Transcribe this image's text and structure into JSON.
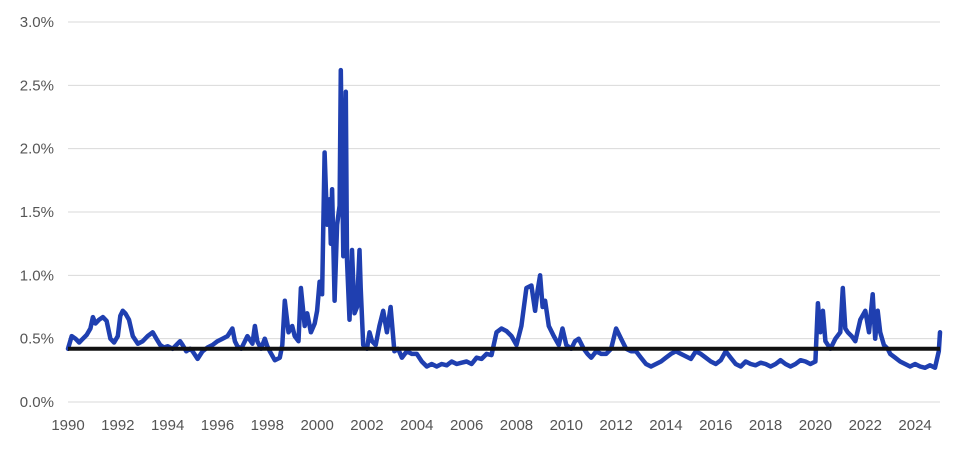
{
  "chart_data": {
    "type": "line",
    "title": "",
    "xlabel": "",
    "ylabel": "",
    "xlim": [
      1990,
      2025
    ],
    "ylim": [
      0,
      3.0
    ],
    "grid": true,
    "y_ticks": [
      {
        "value": 0.0,
        "label": "0.0%"
      },
      {
        "value": 0.5,
        "label": "0.5%"
      },
      {
        "value": 1.0,
        "label": "1.0%"
      },
      {
        "value": 1.5,
        "label": "1.5%"
      },
      {
        "value": 2.0,
        "label": "2.0%"
      },
      {
        "value": 2.5,
        "label": "2.5%"
      },
      {
        "value": 3.0,
        "label": "3.0%"
      }
    ],
    "x_ticks": [
      {
        "value": 1990,
        "label": "1990"
      },
      {
        "value": 1992,
        "label": "1992"
      },
      {
        "value": 1994,
        "label": "1994"
      },
      {
        "value": 1996,
        "label": "1996"
      },
      {
        "value": 1998,
        "label": "1998"
      },
      {
        "value": 2000,
        "label": "2000"
      },
      {
        "value": 2002,
        "label": "2002"
      },
      {
        "value": 2004,
        "label": "2004"
      },
      {
        "value": 2006,
        "label": "2006"
      },
      {
        "value": 2008,
        "label": "2008"
      },
      {
        "value": 2010,
        "label": "2010"
      },
      {
        "value": 2012,
        "label": "2012"
      },
      {
        "value": 2014,
        "label": "2014"
      },
      {
        "value": 2016,
        "label": "2016"
      },
      {
        "value": 2018,
        "label": "2018"
      },
      {
        "value": 2020,
        "label": "2020"
      },
      {
        "value": 2022,
        "label": "2022"
      },
      {
        "value": 2024,
        "label": "2024"
      }
    ],
    "reference_line": {
      "value": 0.42,
      "color": "#111111"
    },
    "series": [
      {
        "color": "#1f3fb0",
        "x": [
          1990.0,
          1990.15,
          1990.3,
          1990.45,
          1990.6,
          1990.75,
          1990.9,
          1991.0,
          1991.1,
          1991.25,
          1991.4,
          1991.55,
          1991.7,
          1991.85,
          1992.0,
          1992.1,
          1992.2,
          1992.3,
          1992.45,
          1992.6,
          1992.8,
          1993.0,
          1993.2,
          1993.4,
          1993.55,
          1993.7,
          1993.85,
          1994.0,
          1994.2,
          1994.4,
          1994.5,
          1994.6,
          1994.75,
          1994.9,
          1995.0,
          1995.2,
          1995.4,
          1995.6,
          1995.8,
          1996.0,
          1996.2,
          1996.4,
          1996.6,
          1996.7,
          1996.8,
          1996.95,
          1997.2,
          1997.4,
          1997.5,
          1997.6,
          1997.75,
          1997.9,
          1998.0,
          1998.1,
          1998.3,
          1998.5,
          1998.6,
          1998.7,
          1998.85,
          1999.0,
          1999.1,
          1999.25,
          1999.35,
          1999.5,
          1999.6,
          1999.75,
          1999.9,
          2000.0,
          2000.1,
          2000.2,
          2000.3,
          2000.4,
          2000.5,
          2000.55,
          2000.6,
          2000.7,
          2000.8,
          2000.9,
          2000.95,
          2001.05,
          2001.1,
          2001.15,
          2001.2,
          2001.3,
          2001.4,
          2001.5,
          2001.6,
          2001.7,
          2001.75,
          2001.85,
          2002.0,
          2002.1,
          2002.2,
          2002.35,
          2002.5,
          2002.65,
          2002.8,
          2002.95,
          2003.1,
          2003.25,
          2003.4,
          2003.6,
          2003.8,
          2004.0,
          2004.2,
          2004.4,
          2004.6,
          2004.8,
          2005.0,
          2005.2,
          2005.4,
          2005.6,
          2005.8,
          2006.0,
          2006.2,
          2006.4,
          2006.6,
          2006.8,
          2007.0,
          2007.2,
          2007.4,
          2007.6,
          2007.8,
          2008.0,
          2008.2,
          2008.4,
          2008.6,
          2008.75,
          2008.85,
          2008.95,
          2009.05,
          2009.15,
          2009.3,
          2009.5,
          2009.7,
          2009.85,
          2010.0,
          2010.2,
          2010.35,
          2010.5,
          2010.7,
          2010.85,
          2011.0,
          2011.2,
          2011.4,
          2011.6,
          2011.8,
          2012.0,
          2012.2,
          2012.4,
          2012.6,
          2012.8,
          2013.0,
          2013.2,
          2013.4,
          2013.6,
          2013.8,
          2014.0,
          2014.2,
          2014.4,
          2014.6,
          2014.8,
          2015.0,
          2015.2,
          2015.4,
          2015.6,
          2015.8,
          2016.0,
          2016.2,
          2016.4,
          2016.6,
          2016.8,
          2017.0,
          2017.2,
          2017.4,
          2017.6,
          2017.8,
          2018.0,
          2018.2,
          2018.4,
          2018.6,
          2018.8,
          2019.0,
          2019.2,
          2019.4,
          2019.6,
          2019.8,
          2020.0,
          2020.1,
          2020.2,
          2020.3,
          2020.4,
          2020.6,
          2020.8,
          2021.0,
          2021.1,
          2021.2,
          2021.3,
          2021.45,
          2021.6,
          2021.8,
          2022.0,
          2022.15,
          2022.3,
          2022.4,
          2022.5,
          2022.6,
          2022.75,
          2022.9,
          2023.0,
          2023.2,
          2023.4,
          2023.6,
          2023.8,
          2024.0,
          2024.2,
          2024.4,
          2024.6,
          2024.8,
          2024.95,
          2025.0
        ],
        "y": [
          0.42,
          0.52,
          0.5,
          0.47,
          0.5,
          0.53,
          0.58,
          0.67,
          0.62,
          0.65,
          0.67,
          0.64,
          0.5,
          0.47,
          0.52,
          0.68,
          0.72,
          0.7,
          0.65,
          0.52,
          0.46,
          0.48,
          0.52,
          0.55,
          0.5,
          0.45,
          0.43,
          0.44,
          0.42,
          0.46,
          0.48,
          0.45,
          0.4,
          0.42,
          0.4,
          0.34,
          0.4,
          0.43,
          0.45,
          0.48,
          0.5,
          0.52,
          0.58,
          0.48,
          0.44,
          0.42,
          0.52,
          0.46,
          0.6,
          0.48,
          0.42,
          0.5,
          0.44,
          0.4,
          0.33,
          0.35,
          0.45,
          0.8,
          0.55,
          0.6,
          0.52,
          0.48,
          0.9,
          0.6,
          0.7,
          0.55,
          0.62,
          0.72,
          0.95,
          0.85,
          1.97,
          1.4,
          1.6,
          1.25,
          1.68,
          0.8,
          1.4,
          1.55,
          2.62,
          1.15,
          1.8,
          2.45,
          1.12,
          0.65,
          1.2,
          0.7,
          0.75,
          1.2,
          0.9,
          0.45,
          0.42,
          0.55,
          0.48,
          0.45,
          0.6,
          0.72,
          0.55,
          0.75,
          0.4,
          0.42,
          0.35,
          0.4,
          0.38,
          0.38,
          0.32,
          0.28,
          0.3,
          0.28,
          0.3,
          0.29,
          0.32,
          0.3,
          0.31,
          0.32,
          0.3,
          0.35,
          0.34,
          0.38,
          0.37,
          0.55,
          0.58,
          0.56,
          0.52,
          0.45,
          0.6,
          0.9,
          0.92,
          0.72,
          0.88,
          1.0,
          0.75,
          0.8,
          0.6,
          0.52,
          0.45,
          0.58,
          0.45,
          0.42,
          0.48,
          0.5,
          0.42,
          0.38,
          0.35,
          0.4,
          0.38,
          0.38,
          0.42,
          0.58,
          0.5,
          0.42,
          0.4,
          0.4,
          0.35,
          0.3,
          0.28,
          0.3,
          0.32,
          0.35,
          0.38,
          0.4,
          0.38,
          0.36,
          0.34,
          0.4,
          0.38,
          0.35,
          0.32,
          0.3,
          0.33,
          0.4,
          0.35,
          0.3,
          0.28,
          0.32,
          0.3,
          0.29,
          0.31,
          0.3,
          0.28,
          0.3,
          0.33,
          0.3,
          0.28,
          0.3,
          0.33,
          0.32,
          0.3,
          0.32,
          0.78,
          0.55,
          0.72,
          0.48,
          0.42,
          0.5,
          0.55,
          0.9,
          0.58,
          0.55,
          0.52,
          0.48,
          0.65,
          0.72,
          0.55,
          0.85,
          0.5,
          0.72,
          0.55,
          0.45,
          0.42,
          0.38,
          0.35,
          0.32,
          0.3,
          0.28,
          0.3,
          0.28,
          0.27,
          0.29,
          0.27,
          0.4,
          0.55
        ]
      }
    ]
  }
}
